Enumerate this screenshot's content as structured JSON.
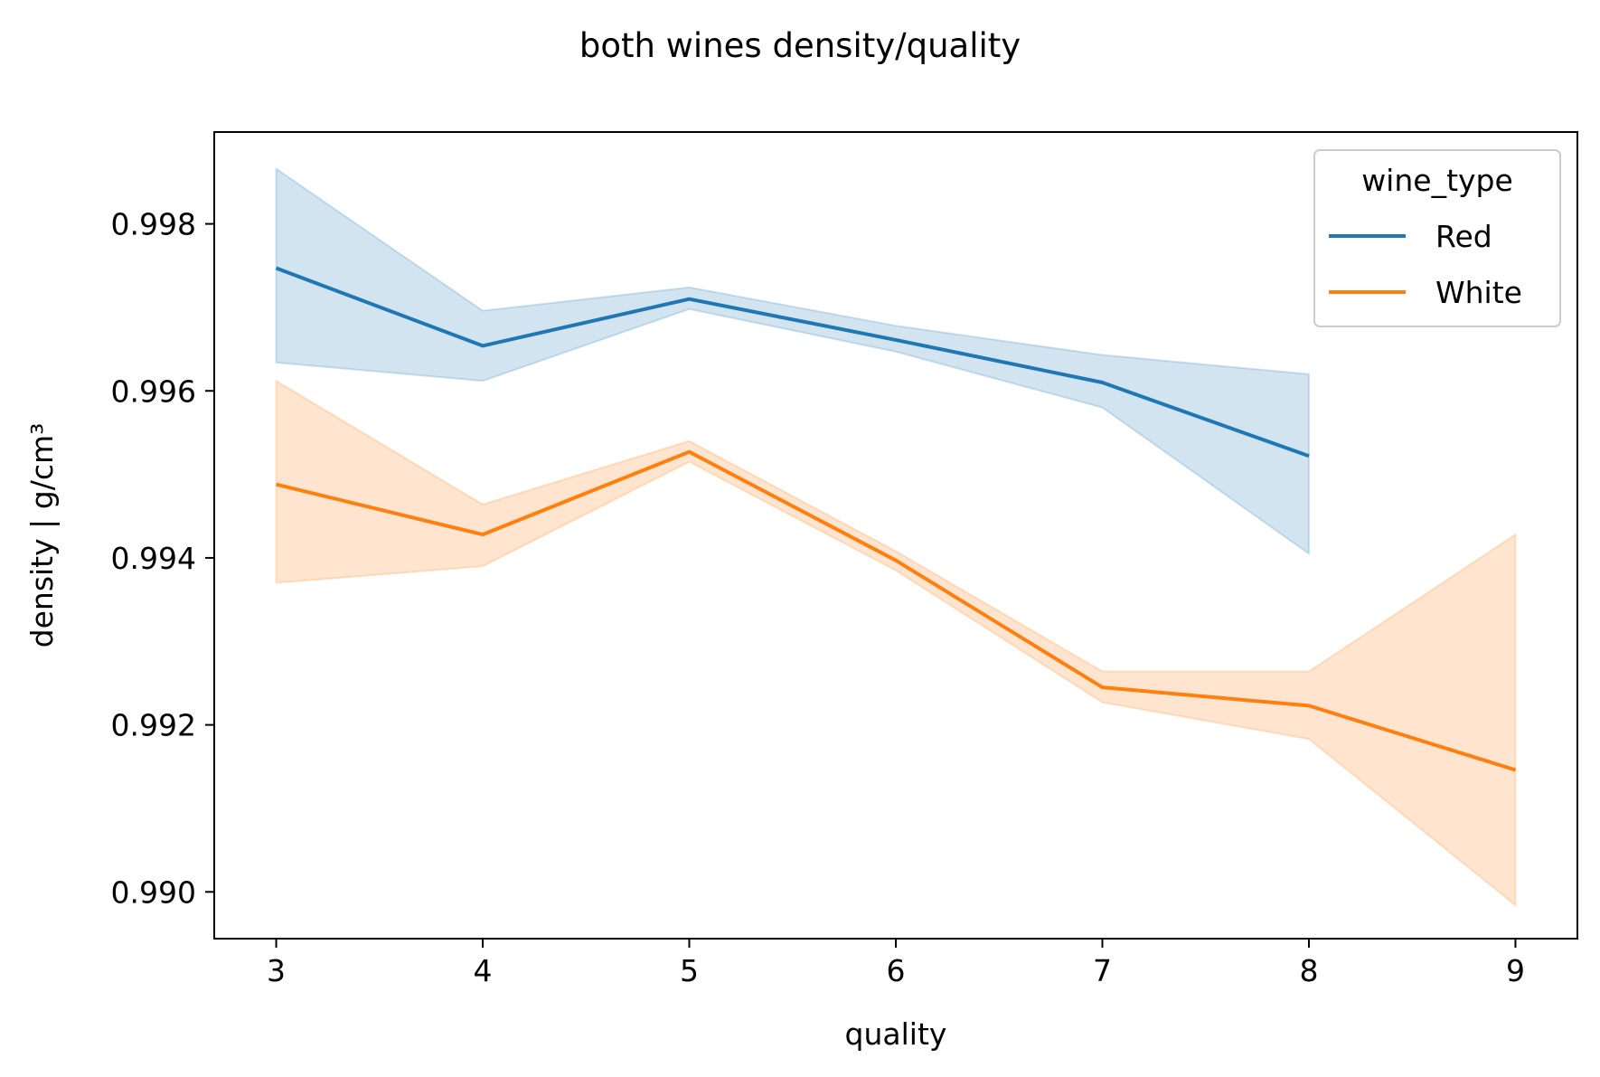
{
  "chart_data": {
    "type": "line",
    "title": "both wines density/quality",
    "xlabel": "quality",
    "ylabel": "density | g/cm³",
    "xlim": [
      2.7,
      9.3
    ],
    "ylim": [
      0.98944,
      0.9991
    ],
    "x_ticks": [
      3,
      4,
      5,
      6,
      7,
      8,
      9
    ],
    "x_tick_labels": [
      "3",
      "4",
      "5",
      "6",
      "7",
      "8",
      "9"
    ],
    "y_ticks": [
      0.99,
      0.992,
      0.994,
      0.996,
      0.998
    ],
    "y_tick_labels": [
      "0.990",
      "0.992",
      "0.994",
      "0.996",
      "0.998"
    ],
    "grid": false,
    "legend": {
      "title": "wine_type",
      "placement": "upper right"
    },
    "series": [
      {
        "name": "Red",
        "color": "#1f77b4",
        "x": [
          3,
          4,
          5,
          6,
          7,
          8
        ],
        "y": [
          0.99747,
          0.99654,
          0.9971,
          0.99661,
          0.9961,
          0.99522
        ],
        "ci_upper": [
          0.99866,
          0.99696,
          0.99724,
          0.99678,
          0.99643,
          0.9962
        ],
        "ci_lower": [
          0.99634,
          0.99612,
          0.99698,
          0.99647,
          0.9958,
          0.99405
        ]
      },
      {
        "name": "White",
        "color": "#ff7f0e",
        "x": [
          3,
          4,
          5,
          6,
          7,
          8,
          9
        ],
        "y": [
          0.99488,
          0.99428,
          0.99527,
          0.99397,
          0.99245,
          0.99223,
          0.99146
        ],
        "ci_upper": [
          0.99612,
          0.99464,
          0.9954,
          0.99408,
          0.99264,
          0.99264,
          0.99428
        ],
        "ci_lower": [
          0.9937,
          0.9939,
          0.99515,
          0.99385,
          0.99227,
          0.99183,
          0.98984
        ]
      }
    ]
  }
}
